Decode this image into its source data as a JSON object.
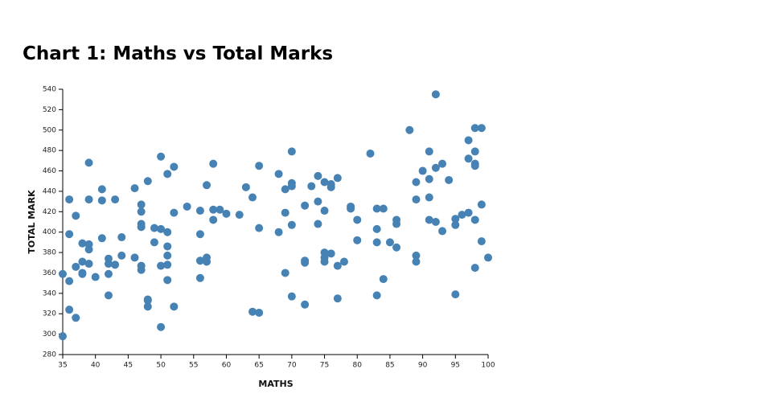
{
  "chart_data": {
    "type": "scatter",
    "title": "Chart 1: Maths vs Total Marks",
    "x_label": "MATHS",
    "y_label": "TOTAL MARK",
    "color": "#4682b4",
    "xlim": [
      35,
      100
    ],
    "ylim": [
      280,
      540
    ],
    "xticks": [
      35,
      40,
      45,
      50,
      55,
      60,
      65,
      70,
      75,
      80,
      85,
      90,
      95,
      100
    ],
    "yticks": [
      280,
      300,
      320,
      340,
      360,
      380,
      400,
      420,
      440,
      460,
      480,
      500,
      520,
      540
    ],
    "x": [
      35,
      35,
      36,
      36,
      36,
      36,
      37,
      37,
      37,
      38,
      38,
      38,
      38,
      39,
      39,
      39,
      39,
      39,
      40,
      41,
      41,
      41,
      42,
      42,
      42,
      42,
      43,
      43,
      44,
      44,
      46,
      46,
      47,
      47,
      47,
      47,
      47,
      47,
      48,
      48,
      48,
      48,
      49,
      49,
      50,
      50,
      50,
      50,
      51,
      51,
      51,
      51,
      51,
      51,
      52,
      52,
      52,
      54,
      56,
      56,
      56,
      56,
      57,
      57,
      57,
      58,
      58,
      58,
      59,
      60,
      62,
      63,
      64,
      64,
      65,
      65,
      65,
      68,
      68,
      69,
      69,
      69,
      70,
      70,
      70,
      70,
      70,
      72,
      72,
      72,
      72,
      73,
      74,
      74,
      74,
      75,
      75,
      75,
      75,
      75,
      76,
      76,
      76,
      77,
      77,
      77,
      78,
      79,
      79,
      80,
      80,
      82,
      83,
      83,
      83,
      83,
      84,
      84,
      85,
      86,
      86,
      86,
      88,
      89,
      89,
      89,
      89,
      90,
      91,
      91,
      91,
      91,
      92,
      92,
      92,
      93,
      93,
      94,
      95,
      95,
      95,
      96,
      97,
      97,
      97,
      98,
      98,
      98,
      98,
      98,
      98,
      99,
      99,
      99,
      100
    ],
    "y": [
      359,
      298,
      432,
      398,
      352,
      324,
      416,
      366,
      316,
      389,
      371,
      360,
      359,
      468,
      432,
      388,
      383,
      369,
      356,
      442,
      431,
      394,
      374,
      369,
      359,
      338,
      432,
      368,
      395,
      377,
      443,
      375,
      427,
      420,
      408,
      405,
      367,
      363,
      450,
      334,
      333,
      327,
      404,
      390,
      474,
      403,
      367,
      307,
      457,
      400,
      386,
      377,
      368,
      353,
      464,
      419,
      327,
      425,
      421,
      398,
      372,
      355,
      446,
      375,
      371,
      467,
      422,
      412,
      422,
      418,
      417,
      444,
      434,
      322,
      465,
      404,
      321,
      457,
      400,
      442,
      419,
      360,
      479,
      448,
      445,
      407,
      337,
      426,
      372,
      370,
      329,
      445,
      455,
      430,
      408,
      449,
      421,
      380,
      375,
      371,
      447,
      444,
      379,
      453,
      367,
      335,
      371,
      425,
      423,
      412,
      392,
      477,
      423,
      403,
      390,
      338,
      423,
      354,
      390,
      412,
      408,
      385,
      500,
      449,
      432,
      377,
      371,
      460,
      479,
      452,
      434,
      412,
      535,
      463,
      410,
      467,
      401,
      451,
      413,
      407,
      339,
      417,
      490,
      472,
      419,
      502,
      479,
      467,
      465,
      412,
      365,
      502,
      427,
      391,
      375
    ]
  }
}
